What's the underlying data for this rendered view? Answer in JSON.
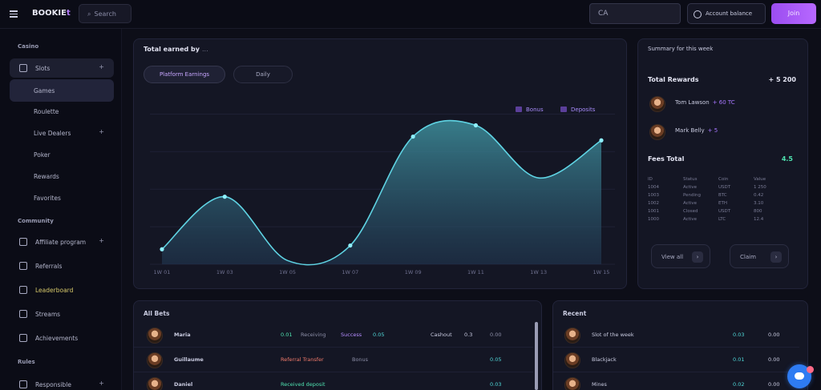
{
  "topbar": {
    "brand": "BOOKIE",
    "brand_accent": "t",
    "search_label": "Search",
    "field_value": "CA",
    "account_label": "Account balance",
    "cta_label": "Join"
  },
  "sidebar": {
    "section_main": "Casino",
    "items": [
      {
        "label": "Slots",
        "chevron": "+"
      },
      {
        "label": "Games"
      },
      {
        "label": "Roulette"
      },
      {
        "label": "Live Dealers",
        "chevron": "+"
      },
      {
        "label": "Poker"
      },
      {
        "label": "Rewards"
      },
      {
        "label": "Favorites"
      }
    ],
    "section_social": "Community",
    "social_items": [
      {
        "label": "Affiliate program",
        "chevron": "+"
      },
      {
        "label": "Referrals"
      },
      {
        "label": "Leaderboard"
      },
      {
        "label": "Streams"
      },
      {
        "label": "Achievements"
      }
    ],
    "section_extra": "Rules",
    "extra_items": [
      {
        "label": "Responsible",
        "chevron": "+"
      }
    ]
  },
  "chart_card": {
    "title": "Total earned by",
    "title_suffix": "...",
    "pill_primary": "Platform Earnings",
    "pill_secondary": "Daily",
    "legend": [
      "Bonus",
      "Deposits"
    ]
  },
  "chart_data": {
    "type": "area",
    "x": [
      "1W 01",
      "1W 03",
      "1W 05",
      "1W 07",
      "1W 09",
      "1W 11",
      "1W 13",
      "1W 15"
    ],
    "values": [
      0.4,
      1.8,
      0.1,
      0.5,
      3.4,
      3.7,
      2.3,
      3.3
    ],
    "ylim": [
      0,
      4.5
    ],
    "grid": true
  },
  "side_card": {
    "title": "Summary for this week",
    "total_label": "Total Rewards",
    "total_value": "+ 5 200",
    "users": [
      {
        "name": "Tom Lawson",
        "tag": "+ 60 TC"
      },
      {
        "name": "Mark Belly",
        "tag": "+ 5"
      }
    ],
    "subtotal_label": "Fees Total",
    "subtotal_value": "4.5",
    "mini_rows": [
      [
        "ID",
        "Status",
        "Coin",
        "Value"
      ],
      [
        "1004",
        "Active",
        "USDT",
        "1 250"
      ],
      [
        "1003",
        "Pending",
        "BTC",
        "0.42"
      ],
      [
        "1002",
        "Active",
        "ETH",
        "3.10"
      ],
      [
        "1001",
        "Closed",
        "USDT",
        "800"
      ],
      [
        "1000",
        "Active",
        "LTC",
        "12.4"
      ]
    ],
    "buttons": [
      "View all",
      "Claim"
    ]
  },
  "bets_table": {
    "title": "All Bets",
    "rows": [
      {
        "user": "Maria",
        "a": "0.01",
        "b": "Receiving",
        "c": "Success",
        "d": "0.05",
        "e": "Cashout",
        "f": "0.3",
        "g": "0.00"
      },
      {
        "user": "Guillaume",
        "a": "Referral Transfer",
        "b": "Bonus",
        "g": "0.05"
      },
      {
        "user": "Daniel",
        "a": "Received deposit",
        "b": "",
        "g": "0.03"
      }
    ]
  },
  "recent_card": {
    "title": "Recent",
    "rows": [
      {
        "name": "Slot of the week",
        "v1": "0.03",
        "v2": "0.00"
      },
      {
        "name": "Blackjack",
        "v1": "0.01",
        "v2": "0.00"
      },
      {
        "name": "Mines",
        "v1": "0.02",
        "v2": "0.00"
      }
    ]
  }
}
